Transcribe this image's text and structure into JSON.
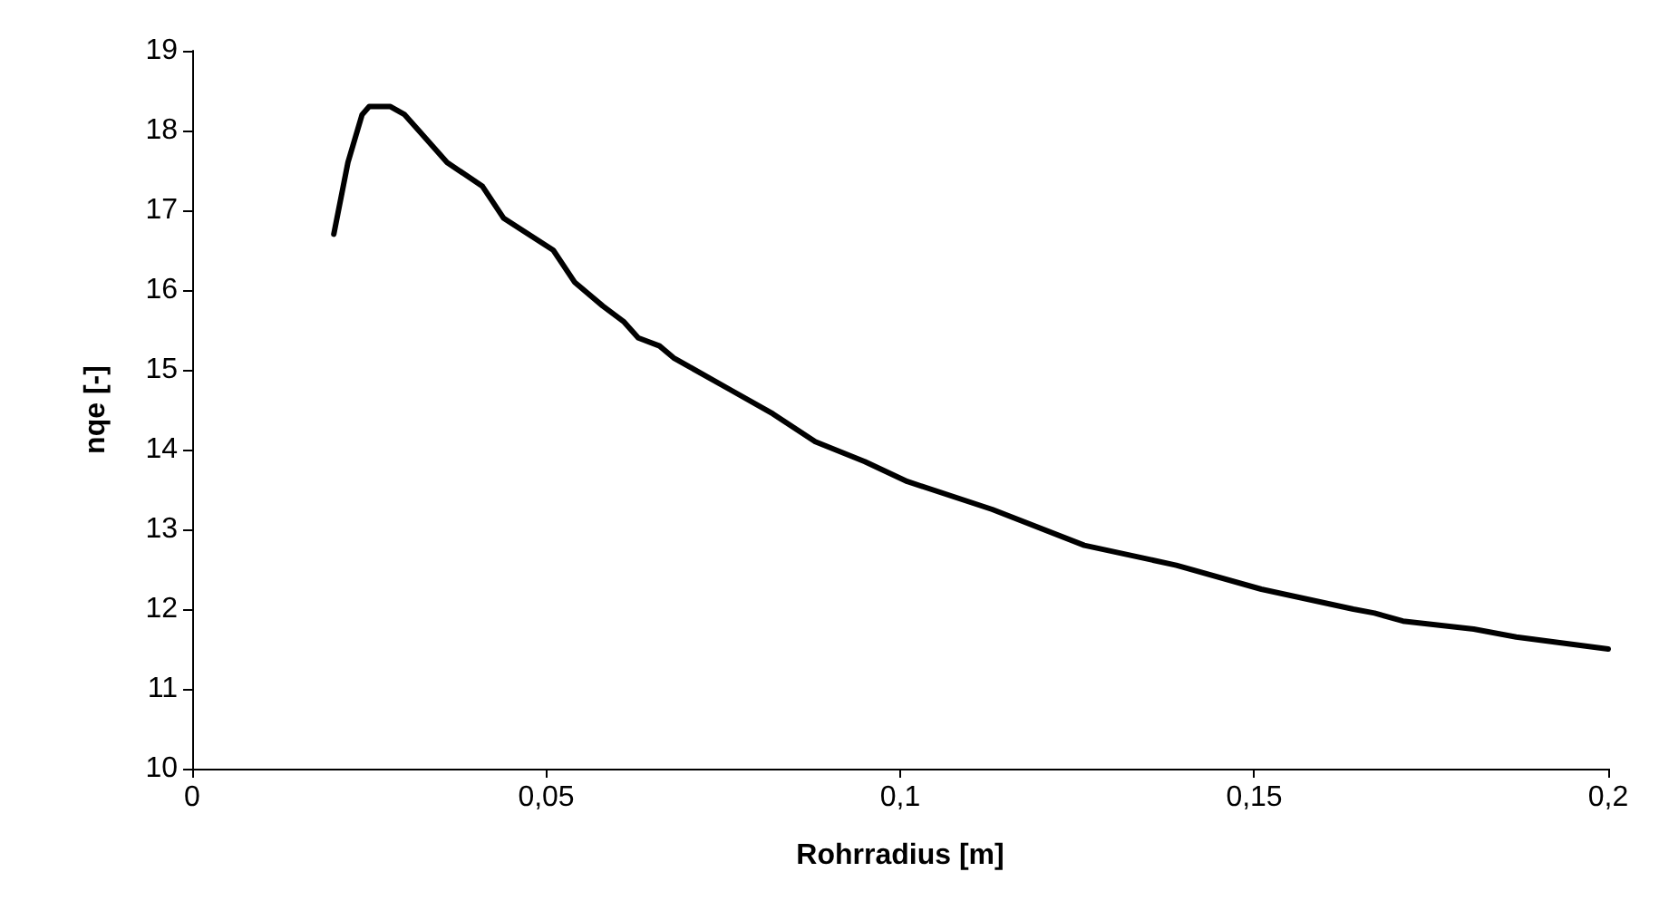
{
  "chart_data": {
    "type": "line",
    "xlabel": "Rohrradius [m]",
    "ylabel": "nqe [-]",
    "x": [
      0.02,
      0.022,
      0.024,
      0.025,
      0.028,
      0.03,
      0.032,
      0.036,
      0.041,
      0.044,
      0.051,
      0.054,
      0.058,
      0.061,
      0.063,
      0.066,
      0.068,
      0.07,
      0.076,
      0.082,
      0.088,
      0.095,
      0.101,
      0.113,
      0.126,
      0.139,
      0.151,
      0.164,
      0.167,
      0.171,
      0.181,
      0.187,
      0.2
    ],
    "series": [
      {
        "color": "#000000",
        "values": [
          16.7,
          17.6,
          18.2,
          18.3,
          18.3,
          18.2,
          18.0,
          17.6,
          17.3,
          16.9,
          16.5,
          16.1,
          15.8,
          15.6,
          15.4,
          15.3,
          15.15,
          15.05,
          14.75,
          14.45,
          14.1,
          13.85,
          13.6,
          13.25,
          12.8,
          12.55,
          12.25,
          12.0,
          11.95,
          11.85,
          11.75,
          11.65,
          11.5
        ]
      }
    ],
    "xlim": [
      0,
      0.2
    ],
    "xticks": [
      0,
      {
        "value": 0.05,
        "label": "0,05"
      },
      {
        "value": 0.1,
        "label": "0,1"
      },
      {
        "value": 0.15,
        "label": "0,15"
      },
      {
        "value": 0.2,
        "label": "0,2"
      }
    ],
    "ylim": [
      10,
      19
    ],
    "yticks": [
      10,
      11,
      12,
      13,
      14,
      15,
      16,
      17,
      18,
      19
    ],
    "marker": "none",
    "line_style": "solid"
  }
}
